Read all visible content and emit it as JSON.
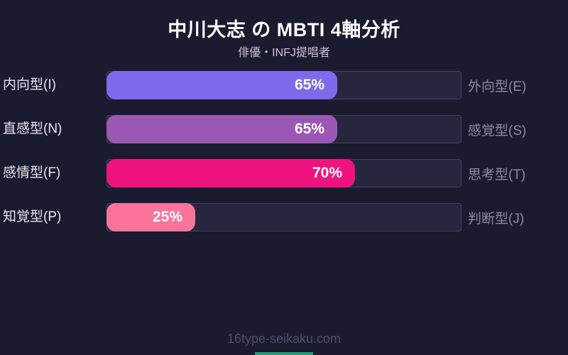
{
  "title": "中川大志 の MBTI 4軸分析",
  "subtitle": "俳優・INFJ提唱者",
  "footer": "16type-seikaku.com",
  "colors": {
    "background": "#1b1b2f",
    "track": "#26263f",
    "track_border": "#44445f",
    "title_text": "#ffffff",
    "subtitle_text": "#cfc2cd",
    "left_label_text": "#e8e6ee",
    "right_label_text": "#8b8ba3",
    "value_text": "#ffffff",
    "footer_text": "#50506a",
    "accent_strip": "#2c967a"
  },
  "chart_data": {
    "type": "bar",
    "orientation": "horizontal",
    "title": "中川大志 の MBTI 4軸分析",
    "subtitle": "俳優・INFJ提唱者",
    "xlim": [
      0,
      100
    ],
    "value_suffix": "%",
    "grid": false,
    "legend": false,
    "axes": [
      {
        "left_label": "内向型(I)",
        "right_label": "外向型(E)",
        "value": 65,
        "bar_color": "#7c6cec"
      },
      {
        "left_label": "直感型(N)",
        "right_label": "感覚型(S)",
        "value": 65,
        "bar_color": "#9a58b4"
      },
      {
        "left_label": "感情型(F)",
        "right_label": "思考型(T)",
        "value": 70,
        "bar_color": "#ef1380"
      },
      {
        "left_label": "知覚型(P)",
        "right_label": "判断型(J)",
        "value": 25,
        "bar_color": "#fa739b"
      }
    ]
  }
}
